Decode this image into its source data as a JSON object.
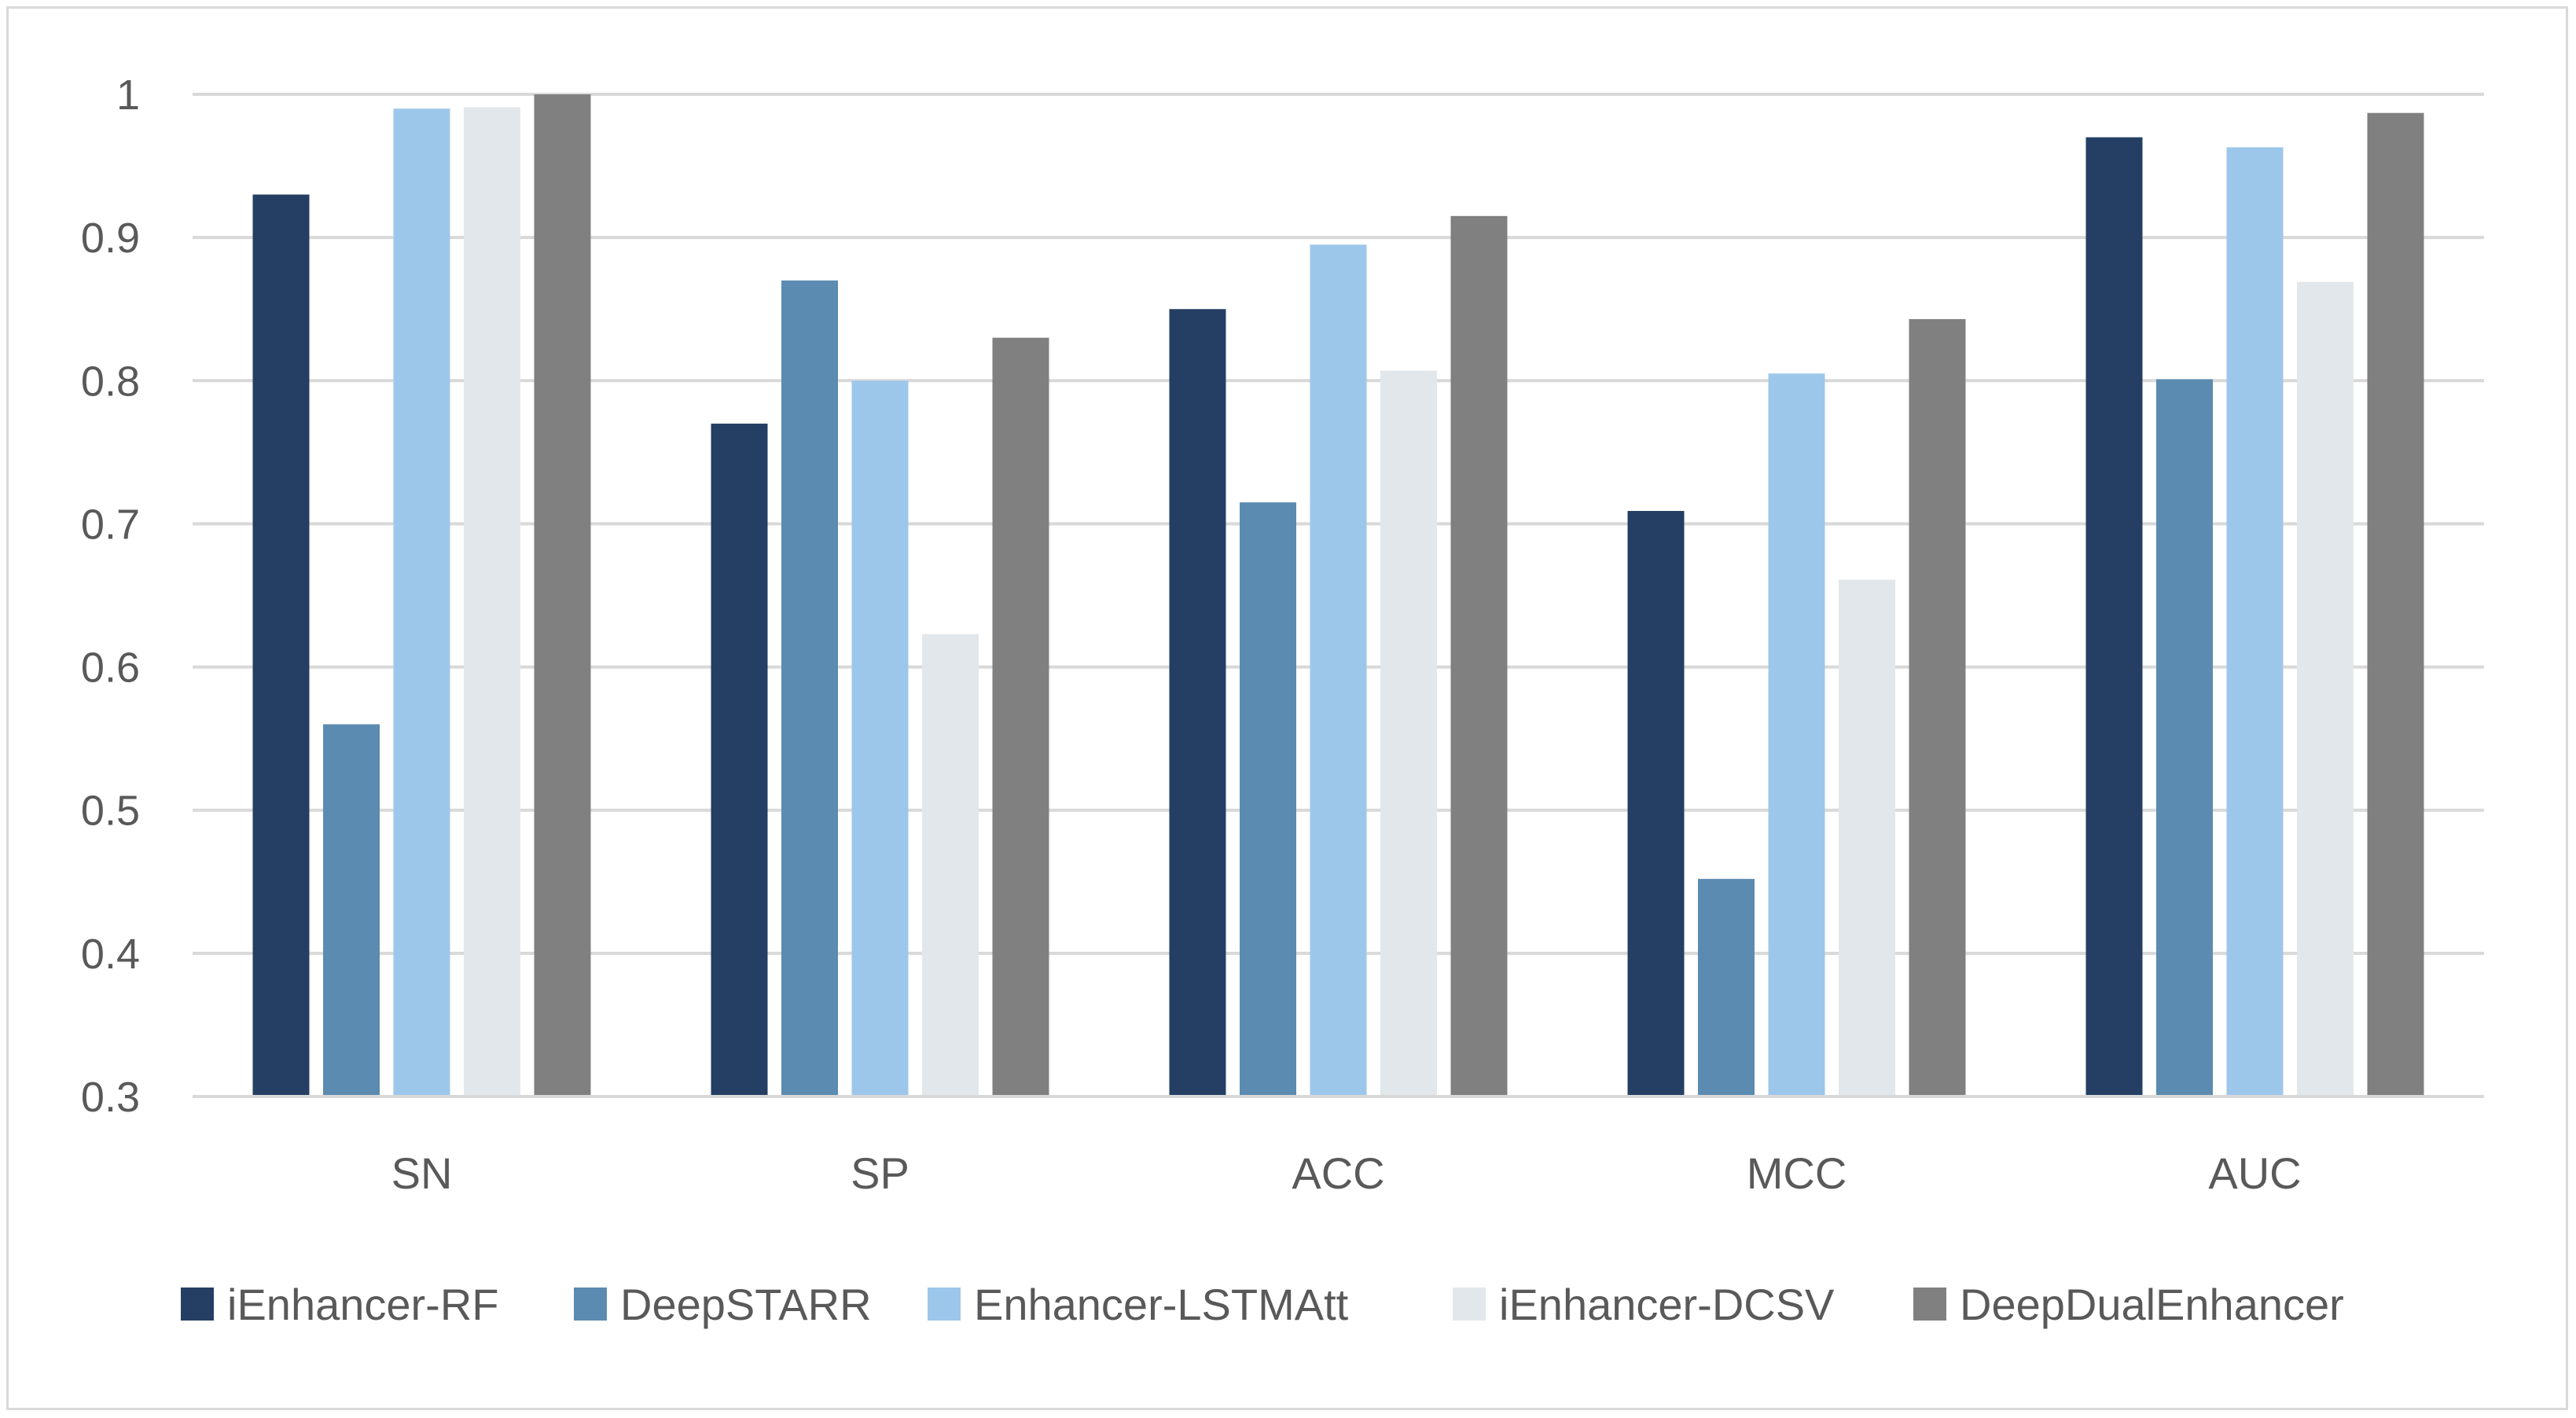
{
  "chart_data": {
    "type": "bar",
    "title": "",
    "xlabel": "",
    "ylabel": "",
    "ylim": [
      0.3,
      1.0
    ],
    "yticks": [
      "0.3",
      "0.4",
      "0.5",
      "0.6",
      "0.7",
      "0.8",
      "0.9",
      "1"
    ],
    "grid": true,
    "legend_position": "bottom",
    "categories": [
      "SN",
      "SP",
      "ACC",
      "MCC",
      "AUC"
    ],
    "series": [
      {
        "name": "iEnhancer-RF",
        "color": "#243f63",
        "values": [
          0.93,
          0.77,
          0.85,
          0.709,
          0.97
        ]
      },
      {
        "name": "DeepSTARR",
        "color": "#5b8bb0",
        "values": [
          0.56,
          0.87,
          0.715,
          0.452,
          0.801
        ]
      },
      {
        "name": "Enhancer-LSTMAtt",
        "color": "#9dc7ea",
        "values": [
          0.99,
          0.8,
          0.895,
          0.805,
          0.963
        ]
      },
      {
        "name": "iEnhancer-DCSV",
        "color": "#e2e7eb",
        "values": [
          0.991,
          0.623,
          0.807,
          0.661,
          0.869
        ]
      },
      {
        "name": "DeepDualEnhancer",
        "color": "#808080",
        "values": [
          1.0,
          0.83,
          0.915,
          0.843,
          0.987
        ]
      }
    ]
  }
}
